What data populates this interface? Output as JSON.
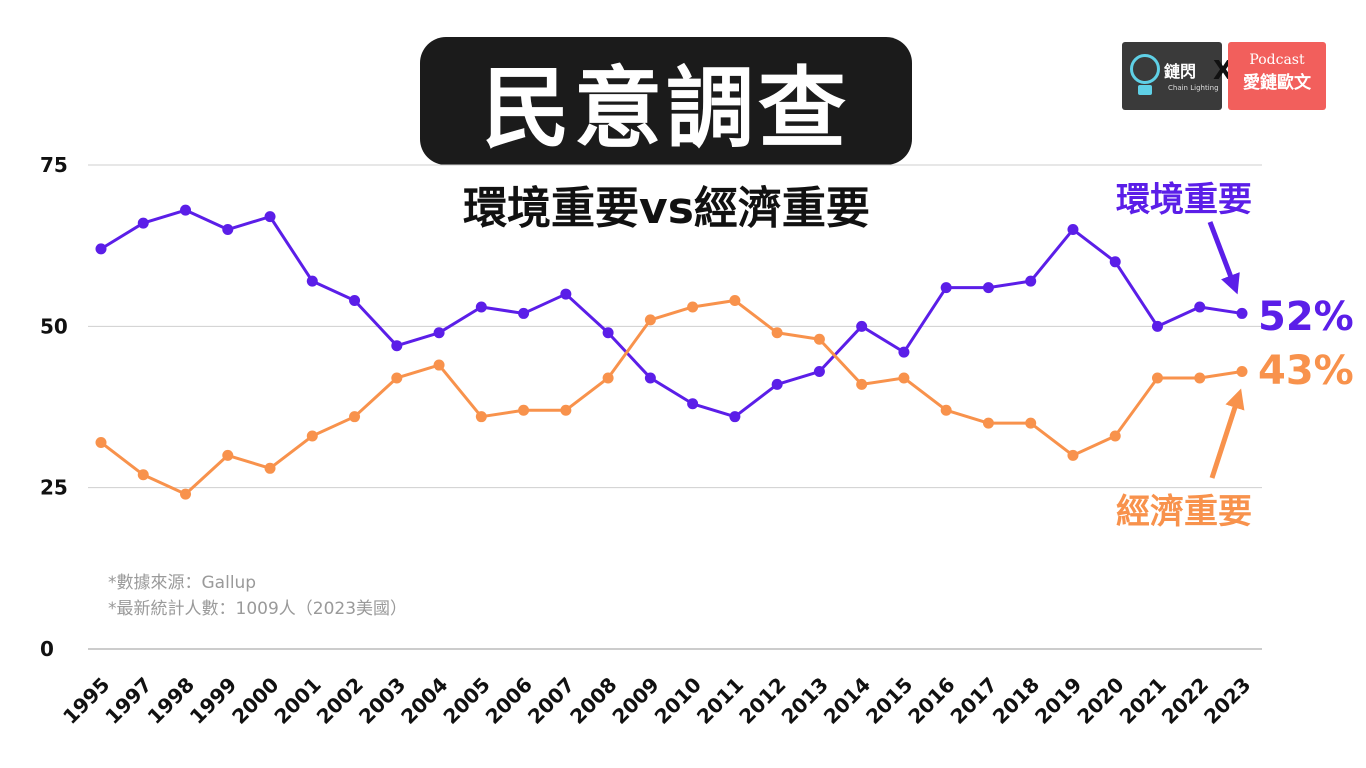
{
  "title": "民意調查",
  "subtitle": "環境重要vs經濟重要",
  "logos": {
    "left_brand": "鏈閃",
    "left_sub": "Chain Lighting",
    "separator": "X",
    "right_line1": "Podcast",
    "right_line2": "愛鏈歐文"
  },
  "notes": [
    "*數據來源：Gallup",
    "*最新統計人數：1009人（2023美國）"
  ],
  "colors": {
    "environment": "#5b1ee8",
    "economy": "#f8924c",
    "grid": "#cfcfcf",
    "axis_text": "#111111"
  },
  "chart_data": {
    "type": "line",
    "x": [
      "1995",
      "1997",
      "1998",
      "1999",
      "2000",
      "2001",
      "2002",
      "2003",
      "2004",
      "2005",
      "2006",
      "2007",
      "2008",
      "2009",
      "2010",
      "2011",
      "2012",
      "2013",
      "2014",
      "2015",
      "2016",
      "2017",
      "2018",
      "2019",
      "2020",
      "2021",
      "2022",
      "2023"
    ],
    "series": [
      {
        "name": "環境重要",
        "values": [
          62,
          66,
          68,
          65,
          67,
          57,
          54,
          47,
          49,
          53,
          52,
          55,
          49,
          42,
          38,
          36,
          41,
          43,
          50,
          46,
          56,
          56,
          57,
          65,
          60,
          50,
          53,
          52
        ],
        "end_label": "52%"
      },
      {
        "name": "經濟重要",
        "values": [
          32,
          27,
          24,
          30,
          28,
          33,
          36,
          42,
          44,
          36,
          37,
          37,
          42,
          51,
          53,
          54,
          49,
          48,
          41,
          42,
          37,
          35,
          35,
          30,
          33,
          42,
          42,
          43
        ],
        "end_label": "43%"
      }
    ],
    "yticks": [
      "0",
      "25",
      "50",
      "75"
    ],
    "ylim": [
      0,
      75
    ],
    "grid": true
  }
}
